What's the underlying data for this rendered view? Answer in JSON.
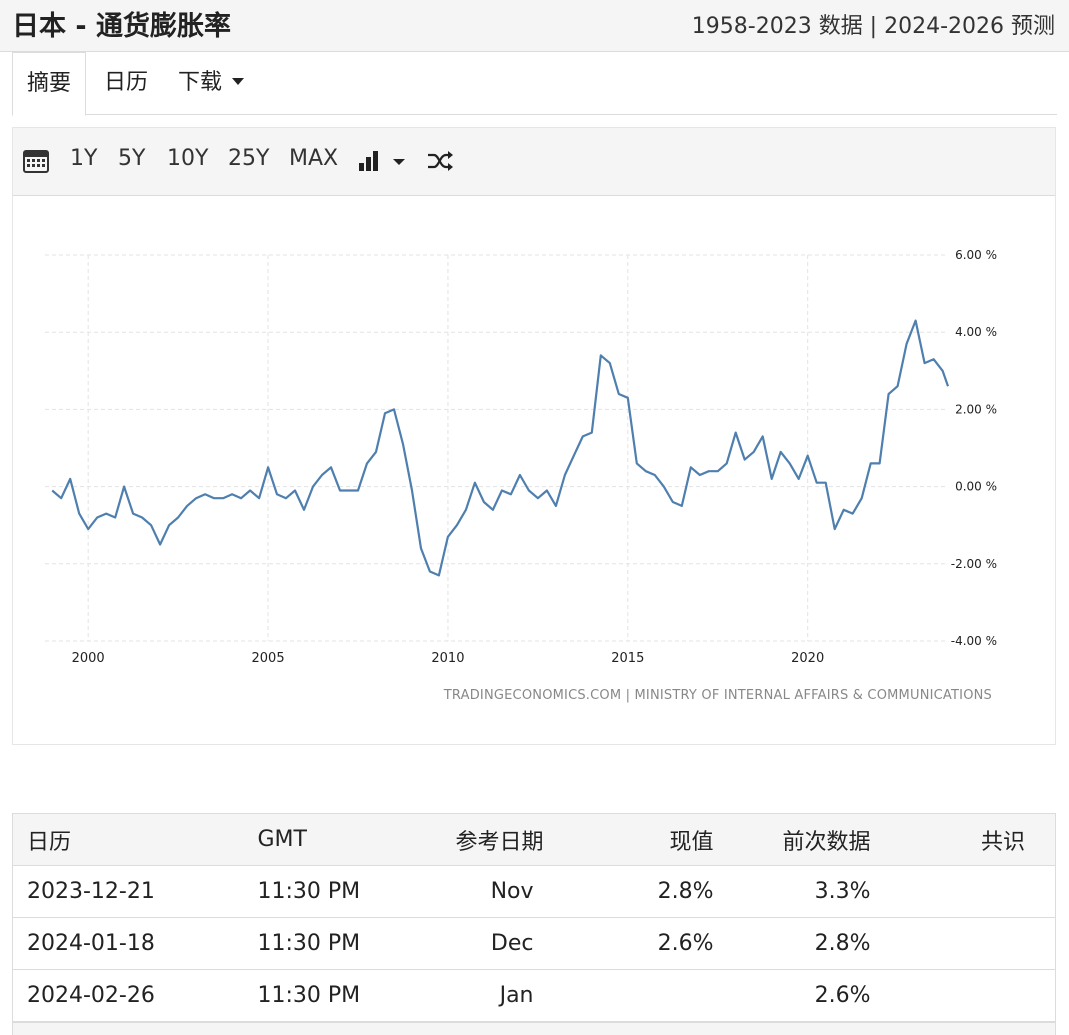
{
  "header": {
    "title": "日本 - 通货膨胀率",
    "range_info": "1958-2023 数据 | 2024-2026 预测"
  },
  "tabs": [
    {
      "label": "摘要"
    },
    {
      "label": "日历"
    },
    {
      "label": "下载"
    }
  ],
  "toolbar": {
    "ranges": [
      "1Y",
      "5Y",
      "10Y",
      "25Y",
      "MAX"
    ],
    "icons": [
      "calendar-icon",
      "bar-chart-icon",
      "shuffle-icon"
    ]
  },
  "chart_data": {
    "type": "line",
    "title": "",
    "xlabel": "",
    "ylabel": "",
    "unit": "%",
    "x_range": [
      1998.8,
      2023.9
    ],
    "ylim": [
      -4,
      6
    ],
    "y_ticks": [
      "6.00 %",
      "4.00 %",
      "2.00 %",
      "0.00 %",
      "-2.00 %",
      "-4.00 %"
    ],
    "x_ticks": [
      "2000",
      "2005",
      "2010",
      "2015",
      "2020"
    ],
    "grid": true,
    "line_color": "#4e7fae",
    "source_text": "TRADINGECONOMICS.COM | MINISTRY OF INTERNAL AFFAIRS & COMMUNICATIONS",
    "series": [
      {
        "x": [
          1999.0,
          1999.25,
          1999.5,
          1999.75,
          2000.0,
          2000.25,
          2000.5,
          2000.75,
          2001.0,
          2001.25,
          2001.5,
          2001.75,
          2002.0,
          2002.25,
          2002.5,
          2002.75,
          2003.0,
          2003.25,
          2003.5,
          2003.75,
          2004.0,
          2004.25,
          2004.5,
          2004.75,
          2005.0,
          2005.25,
          2005.5,
          2005.75,
          2006.0,
          2006.25,
          2006.5,
          2006.75,
          2007.0,
          2007.25,
          2007.5,
          2007.75,
          2008.0,
          2008.25,
          2008.5,
          2008.75,
          2009.0,
          2009.25,
          2009.5,
          2009.75,
          2010.0,
          2010.25,
          2010.5,
          2010.75,
          2011.0,
          2011.25,
          2011.5,
          2011.75,
          2012.0,
          2012.25,
          2012.5,
          2012.75,
          2013.0,
          2013.25,
          2013.5,
          2013.75,
          2014.0,
          2014.25,
          2014.5,
          2014.75,
          2015.0,
          2015.25,
          2015.5,
          2015.75,
          2016.0,
          2016.25,
          2016.5,
          2016.75,
          2017.0,
          2017.25,
          2017.5,
          2017.75,
          2018.0,
          2018.25,
          2018.5,
          2018.75,
          2019.0,
          2019.25,
          2019.5,
          2019.75,
          2020.0,
          2020.25,
          2020.5,
          2020.75,
          2021.0,
          2021.25,
          2021.5,
          2021.75,
          2022.0,
          2022.25,
          2022.5,
          2022.75,
          2023.0,
          2023.25,
          2023.5,
          2023.75,
          2023.9
        ],
        "values": [
          -0.1,
          -0.3,
          0.2,
          -0.7,
          -1.1,
          -0.8,
          -0.7,
          -0.8,
          0.0,
          -0.7,
          -0.8,
          -1.0,
          -1.5,
          -1.0,
          -0.8,
          -0.5,
          -0.3,
          -0.2,
          -0.3,
          -0.3,
          -0.2,
          -0.3,
          -0.1,
          -0.3,
          0.5,
          -0.2,
          -0.3,
          -0.1,
          -0.6,
          0.0,
          0.3,
          0.5,
          -0.1,
          -0.1,
          -0.1,
          0.6,
          0.9,
          1.9,
          2.0,
          1.1,
          -0.1,
          -1.6,
          -2.2,
          -2.3,
          -1.3,
          -1.0,
          -0.6,
          0.1,
          -0.4,
          -0.6,
          -0.1,
          -0.2,
          0.3,
          -0.1,
          -0.3,
          -0.1,
          -0.5,
          0.3,
          0.8,
          1.3,
          1.4,
          3.4,
          3.2,
          2.4,
          2.3,
          0.6,
          0.4,
          0.3,
          0.0,
          -0.4,
          -0.5,
          0.5,
          0.3,
          0.4,
          0.4,
          0.6,
          1.4,
          0.7,
          0.9,
          1.3,
          0.2,
          0.9,
          0.6,
          0.2,
          0.8,
          0.1,
          0.1,
          -1.1,
          -0.6,
          -0.7,
          -0.3,
          0.6,
          0.6,
          2.4,
          2.6,
          3.7,
          4.3,
          3.2,
          3.3,
          3.0,
          2.6
        ]
      }
    ]
  },
  "calendar_table": {
    "headers": [
      "日历",
      "GMT",
      "参考日期",
      "现值",
      "前次数据",
      "共识"
    ],
    "rows": [
      [
        "2023-12-21",
        "11:30 PM",
        "Nov",
        "2.8%",
        "3.3%",
        ""
      ],
      [
        "2024-01-18",
        "11:30 PM",
        "Dec",
        "2.6%",
        "2.8%",
        ""
      ],
      [
        "2024-02-26",
        "11:30 PM",
        "Jan",
        "",
        "2.6%",
        ""
      ]
    ]
  }
}
